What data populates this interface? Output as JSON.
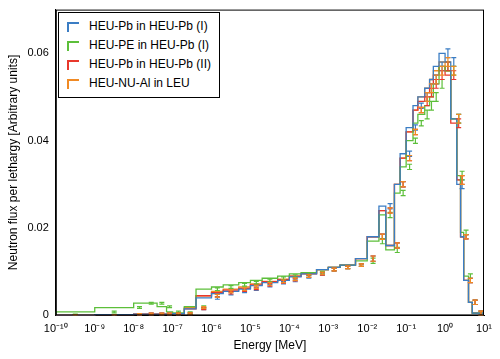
{
  "chart_data": {
    "type": "line",
    "x_label": "Energy [MeV]",
    "y_label": "Neutron flux per lethargy [Arbitrary units]",
    "log": "x",
    "grid": false,
    "legend": "upper left",
    "line_style": "step",
    "xlim": [
      1e-10,
      10
    ],
    "xticks": [
      {
        "value": 1e-10,
        "label": "10⁻¹⁰"
      },
      {
        "value": 1e-09,
        "label": "10⁻⁹"
      },
      {
        "value": 1e-08,
        "label": "10⁻⁸"
      },
      {
        "value": 1e-07,
        "label": "10⁻⁷"
      },
      {
        "value": 1e-06,
        "label": "10⁻⁶"
      },
      {
        "value": 1e-05,
        "label": "10⁻⁵"
      },
      {
        "value": 0.0001,
        "label": "10⁻⁴"
      },
      {
        "value": 0.001,
        "label": "10⁻³"
      },
      {
        "value": 0.01,
        "label": "10⁻²"
      },
      {
        "value": 0.1,
        "label": "10⁻¹"
      },
      {
        "value": 1,
        "label": "10⁰"
      },
      {
        "value": 10,
        "label": "10¹"
      }
    ],
    "ylim": [
      0,
      0.07
    ],
    "yticks": [
      0,
      0.02,
      0.04,
      0.06
    ],
    "bins": [
      1e-10,
      1e-09,
      1e-08,
      2e-08,
      4e-08,
      7e-08,
      1e-07,
      2e-07,
      4e-07,
      1e-06,
      2e-06,
      5e-06,
      1e-05,
      2e-05,
      5e-05,
      0.0001,
      0.0002,
      0.0005,
      0.001,
      0.002,
      0.005,
      0.01,
      0.02,
      0.03,
      0.05,
      0.07,
      0.1,
      0.15,
      0.2,
      0.3,
      0.4,
      0.5,
      0.7,
      1.0,
      1.4,
      2.0,
      2.5,
      3.0,
      4.0,
      5.0,
      7.0,
      10
    ],
    "series": [
      {
        "name": "HEU-Pb in HEU-Pb (I)",
        "color": "#3b7dc4",
        "values": [
          0,
          0,
          0.0002,
          0.0003,
          0.0003,
          0.0003,
          0.0003,
          0.0004,
          0.0015,
          0.004,
          0.005,
          0.0055,
          0.006,
          0.0068,
          0.0075,
          0.008,
          0.0088,
          0.0095,
          0.0105,
          0.011,
          0.0115,
          0.013,
          0.018,
          0.025,
          0.016,
          0.03,
          0.037,
          0.043,
          0.048,
          0.05,
          0.052,
          0.054,
          0.057,
          0.06,
          0.058,
          0.045,
          0.03,
          0.018,
          0.008,
          0.003,
          0.0005
        ],
        "errors": [
          0.0002,
          0.0002,
          0.0002,
          0.0002,
          0.0002,
          0.0002,
          0.0002,
          0.0002,
          0.0002,
          0.0003,
          0.0003,
          0.0003,
          0.0003,
          0.0003,
          0.0003,
          0.0003,
          0.0003,
          0.0003,
          0.0003,
          0.0003,
          0.0003,
          0.0006,
          0.0006,
          0.0006,
          0.0006,
          0.0006,
          0.0006,
          0.0006,
          0.0006,
          0.001,
          0.001,
          0.001,
          0.001,
          0.001,
          0.001,
          0.001,
          0.001,
          0.0005,
          0.0005,
          0.0005,
          0.0005
        ]
      },
      {
        "name": "HEU-PE in HEU-Pb (I)",
        "color": "#5cbf3a",
        "values": [
          0.0001,
          0.0008,
          0.0018,
          0.0028,
          0.0028,
          0.002,
          0.0008,
          0.0006,
          0.002,
          0.006,
          0.0065,
          0.007,
          0.0075,
          0.008,
          0.0085,
          0.009,
          0.0095,
          0.0098,
          0.0105,
          0.011,
          0.0115,
          0.0125,
          0.017,
          0.023,
          0.015,
          0.028,
          0.034,
          0.04,
          0.044,
          0.046,
          0.048,
          0.05,
          0.053,
          0.057,
          0.056,
          0.045,
          0.032,
          0.019,
          0.009,
          0.003,
          0.0005
        ],
        "errors": [
          0.0002,
          0.0002,
          0.0002,
          0.0002,
          0.0002,
          0.0002,
          0.0002,
          0.0002,
          0.0002,
          0.0003,
          0.0003,
          0.0003,
          0.0003,
          0.0003,
          0.0003,
          0.0003,
          0.0003,
          0.0003,
          0.0003,
          0.0003,
          0.0003,
          0.0006,
          0.0006,
          0.0006,
          0.0006,
          0.0006,
          0.0006,
          0.0006,
          0.0006,
          0.001,
          0.001,
          0.001,
          0.001,
          0.001,
          0.001,
          0.001,
          0.001,
          0.0005,
          0.0005,
          0.0005,
          0.0005
        ]
      },
      {
        "name": "HEU-Pb in HEU-Pb (II)",
        "color": "#e8382c",
        "values": [
          0,
          0,
          0.0002,
          0.0003,
          0.0003,
          0.0003,
          0.0003,
          0.0004,
          0.0015,
          0.0045,
          0.0052,
          0.0058,
          0.0062,
          0.007,
          0.0077,
          0.0082,
          0.009,
          0.0095,
          0.0105,
          0.011,
          0.0115,
          0.013,
          0.018,
          0.024,
          0.016,
          0.03,
          0.036,
          0.042,
          0.047,
          0.049,
          0.051,
          0.053,
          0.055,
          0.057,
          0.055,
          0.044,
          0.031,
          0.018,
          0.008,
          0.003,
          0.0005
        ],
        "errors": [
          0.0002,
          0.0002,
          0.0002,
          0.0002,
          0.0002,
          0.0002,
          0.0002,
          0.0002,
          0.0002,
          0.0003,
          0.0003,
          0.0003,
          0.0003,
          0.0003,
          0.0003,
          0.0003,
          0.0003,
          0.0003,
          0.0003,
          0.0003,
          0.0003,
          0.0006,
          0.0006,
          0.0006,
          0.0006,
          0.0006,
          0.0006,
          0.0006,
          0.0006,
          0.001,
          0.001,
          0.001,
          0.001,
          0.001,
          0.001,
          0.001,
          0.001,
          0.0005,
          0.0005,
          0.0005,
          0.0005
        ]
      },
      {
        "name": "HEU-NU-Al in LEU",
        "color": "#f08a24",
        "values": [
          0,
          0,
          0.0002,
          0.0003,
          0.0003,
          0.0003,
          0.0003,
          0.0004,
          0.0018,
          0.0045,
          0.0055,
          0.006,
          0.0065,
          0.0072,
          0.0078,
          0.0083,
          0.009,
          0.0096,
          0.0105,
          0.011,
          0.0115,
          0.013,
          0.018,
          0.024,
          0.016,
          0.03,
          0.036,
          0.042,
          0.047,
          0.05,
          0.052,
          0.054,
          0.056,
          0.058,
          0.056,
          0.045,
          0.031,
          0.018,
          0.008,
          0.003,
          0.0005
        ],
        "errors": [
          0.0002,
          0.0002,
          0.0002,
          0.0002,
          0.0002,
          0.0002,
          0.0002,
          0.0002,
          0.0002,
          0.0003,
          0.0003,
          0.0003,
          0.0003,
          0.0003,
          0.0003,
          0.0003,
          0.0003,
          0.0003,
          0.0003,
          0.0003,
          0.0003,
          0.0006,
          0.0006,
          0.0006,
          0.0006,
          0.0006,
          0.0006,
          0.0006,
          0.0006,
          0.001,
          0.001,
          0.001,
          0.001,
          0.001,
          0.001,
          0.001,
          0.001,
          0.0005,
          0.0005,
          0.0005,
          0.0005
        ]
      }
    ]
  }
}
